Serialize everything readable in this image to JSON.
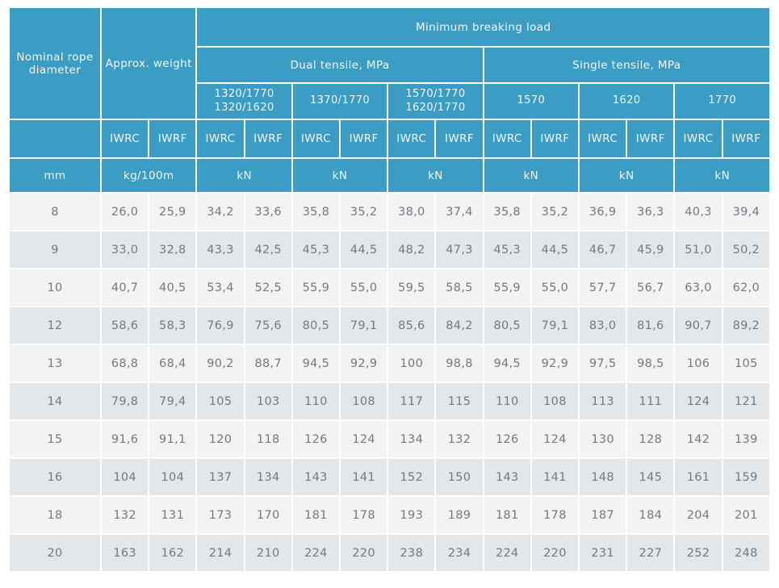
{
  "colors": {
    "header_bg": "#3b9cc4",
    "header_text": "#f4f8fa",
    "row_odd_bg": "#f3f3f4",
    "row_even_bg": "#e3e7e9",
    "cell_text": "#73797e",
    "page_bg": "#ffffff"
  },
  "table": {
    "header": {
      "nominal_rope_diameter": "Nominal rope diameter",
      "approx_weight": "Approx. weight",
      "min_breaking_load": "Minimum breaking load",
      "dual_tensile": "Dual tensile, MPa",
      "single_tensile": "Single tensile, MPa",
      "tensile_groups": [
        {
          "line1": "1320/1770",
          "line2": "1320/1620"
        },
        {
          "line1": "1370/1770",
          "line2": ""
        },
        {
          "line1": "1570/1770",
          "line2": "1620/1770"
        },
        {
          "line1": "1570",
          "line2": ""
        },
        {
          "line1": "1620",
          "line2": ""
        },
        {
          "line1": "1770",
          "line2": ""
        }
      ],
      "core_types": [
        "IWRC",
        "IWRF"
      ],
      "units": {
        "diameter": "mm",
        "weight": "kg/100m",
        "load": "kN"
      }
    },
    "rows": [
      {
        "diameter": "8",
        "values": [
          "26,0",
          "25,9",
          "34,2",
          "33,6",
          "35,8",
          "35,2",
          "38,0",
          "37,4",
          "35,8",
          "35,2",
          "36,9",
          "36,3",
          "40,3",
          "39,4"
        ]
      },
      {
        "diameter": "9",
        "values": [
          "33,0",
          "32,8",
          "43,3",
          "42,5",
          "45,3",
          "44,5",
          "48,2",
          "47,3",
          "45,3",
          "44,5",
          "46,7",
          "45,9",
          "51,0",
          "50,2"
        ]
      },
      {
        "diameter": "10",
        "values": [
          "40,7",
          "40,5",
          "53,4",
          "52,5",
          "55,9",
          "55,0",
          "59,5",
          "58,5",
          "55,9",
          "55,0",
          "57,7",
          "56,7",
          "63,0",
          "62,0"
        ]
      },
      {
        "diameter": "12",
        "values": [
          "58,6",
          "58,3",
          "76,9",
          "75,6",
          "80,5",
          "79,1",
          "85,6",
          "84,2",
          "80,5",
          "79,1",
          "83,0",
          "81,6",
          "90,7",
          "89,2"
        ]
      },
      {
        "diameter": "13",
        "values": [
          "68,8",
          "68,4",
          "90,2",
          "88,7",
          "94,5",
          "92,9",
          "100",
          "98,8",
          "94,5",
          "92,9",
          "97,5",
          "98,5",
          "106",
          "105"
        ]
      },
      {
        "diameter": "14",
        "values": [
          "79,8",
          "79,4",
          "105",
          "103",
          "110",
          "108",
          "117",
          "115",
          "110",
          "108",
          "113",
          "111",
          "124",
          "121"
        ]
      },
      {
        "diameter": "15",
        "values": [
          "91,6",
          "91,1",
          "120",
          "118",
          "126",
          "124",
          "134",
          "132",
          "126",
          "124",
          "130",
          "128",
          "142",
          "139"
        ]
      },
      {
        "diameter": "16",
        "values": [
          "104",
          "104",
          "137",
          "134",
          "143",
          "141",
          "152",
          "150",
          "143",
          "141",
          "148",
          "145",
          "161",
          "159"
        ]
      },
      {
        "diameter": "18",
        "values": [
          "132",
          "131",
          "173",
          "170",
          "181",
          "178",
          "193",
          "189",
          "181",
          "178",
          "187",
          "184",
          "204",
          "201"
        ]
      },
      {
        "diameter": "20",
        "values": [
          "163",
          "162",
          "214",
          "210",
          "224",
          "220",
          "238",
          "234",
          "224",
          "220",
          "231",
          "227",
          "252",
          "248"
        ]
      }
    ]
  }
}
